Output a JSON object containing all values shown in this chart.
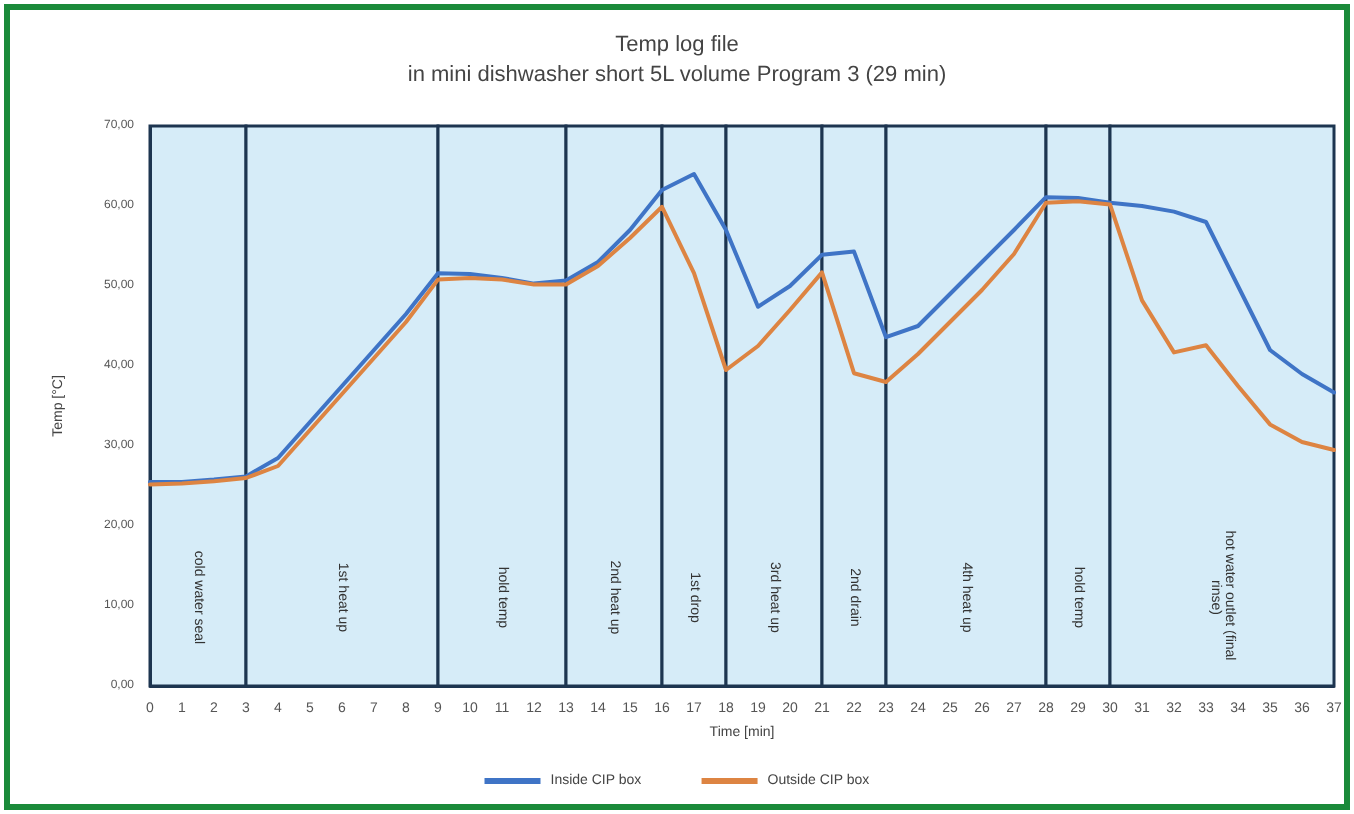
{
  "chart_data": {
    "type": "line",
    "title": "Temp log file",
    "subtitle": "in mini dishwasher short 5L volume Program 3 (29 min)",
    "xlabel": "Time [min]",
    "ylabel": "Temp [°C]",
    "x": [
      0,
      1,
      2,
      3,
      4,
      5,
      6,
      7,
      8,
      9,
      10,
      11,
      12,
      13,
      14,
      15,
      16,
      17,
      18,
      19,
      20,
      21,
      22,
      23,
      24,
      25,
      26,
      27,
      28,
      29,
      30,
      31,
      32,
      33,
      34,
      35,
      36,
      37
    ],
    "series": [
      {
        "name": "Inside CIP box",
        "color": "#3f74c6",
        "values": [
          25.5,
          25.5,
          25.8,
          26.2,
          28.5,
          33,
          37.5,
          42,
          46.5,
          51.6,
          51.5,
          51,
          50.3,
          50.7,
          53,
          57,
          62,
          64,
          57,
          47.4,
          50,
          53.9,
          54.3,
          43.6,
          45,
          49,
          53,
          57,
          61.1,
          61,
          60.4,
          60,
          59.3,
          58,
          50,
          42,
          39,
          36.7
        ]
      },
      {
        "name": "Outside CIP box",
        "color": "#dd8442",
        "values": [
          25.2,
          25.3,
          25.6,
          26,
          27.5,
          32,
          36.5,
          41,
          45.5,
          50.8,
          51,
          50.8,
          50.2,
          50.2,
          52.5,
          56,
          59.9,
          51.6,
          39.5,
          42.5,
          47,
          51.7,
          39.1,
          38,
          41.5,
          45.5,
          49.5,
          54,
          60.4,
          60.6,
          60.2,
          48.2,
          41.7,
          42.6,
          37.5,
          32.7,
          30.5,
          29.5
        ]
      }
    ],
    "xlim": [
      0,
      37
    ],
    "xticks": [
      0,
      1,
      2,
      3,
      4,
      5,
      6,
      7,
      8,
      9,
      10,
      11,
      12,
      13,
      14,
      15,
      16,
      17,
      18,
      19,
      20,
      21,
      22,
      23,
      24,
      25,
      26,
      27,
      28,
      29,
      30,
      31,
      32,
      33,
      34,
      35,
      36,
      37
    ],
    "ylim": [
      0,
      70
    ],
    "yticks": [
      {
        "value": 0,
        "label": "0,00"
      },
      {
        "value": 10,
        "label": "10,00"
      },
      {
        "value": 20,
        "label": "20,00"
      },
      {
        "value": 30,
        "label": "30,00"
      },
      {
        "value": 40,
        "label": "40,00"
      },
      {
        "value": 50,
        "label": "50,00"
      },
      {
        "value": 60,
        "label": "60,00"
      },
      {
        "value": 70,
        "label": "70,00"
      }
    ],
    "bands": [
      {
        "axis": "x",
        "from": 0,
        "to": 3,
        "label": "cold water seal",
        "color": "#d6ecf8"
      },
      {
        "axis": "x",
        "from": 3,
        "to": 9,
        "label": "1st heat up",
        "color": "#d6ecf8"
      },
      {
        "axis": "x",
        "from": 9,
        "to": 13,
        "label": "hold temp",
        "color": "#d6ecf8"
      },
      {
        "axis": "x",
        "from": 13,
        "to": 16,
        "label": "2nd heat up",
        "color": "#d6ecf8"
      },
      {
        "axis": "x",
        "from": 16,
        "to": 18,
        "label": "1st drop",
        "color": "#d6ecf8"
      },
      {
        "axis": "x",
        "from": 18,
        "to": 21,
        "label": "3rd heat up",
        "color": "#d6ecf8"
      },
      {
        "axis": "x",
        "from": 21,
        "to": 23,
        "label": "2nd drain",
        "color": "#d6ecf8"
      },
      {
        "axis": "x",
        "from": 23,
        "to": 28,
        "label": "4th heat up",
        "color": "#d6ecf8"
      },
      {
        "axis": "x",
        "from": 28,
        "to": 30,
        "label": "hold temp",
        "color": "#d6ecf8"
      },
      {
        "axis": "x",
        "from": 30,
        "to": 37,
        "label": "hot water outlet (final rinse)",
        "color": "#d6ecf8"
      }
    ],
    "grid": false,
    "legend": "bottom",
    "marker": "none",
    "line_style": "solid"
  }
}
